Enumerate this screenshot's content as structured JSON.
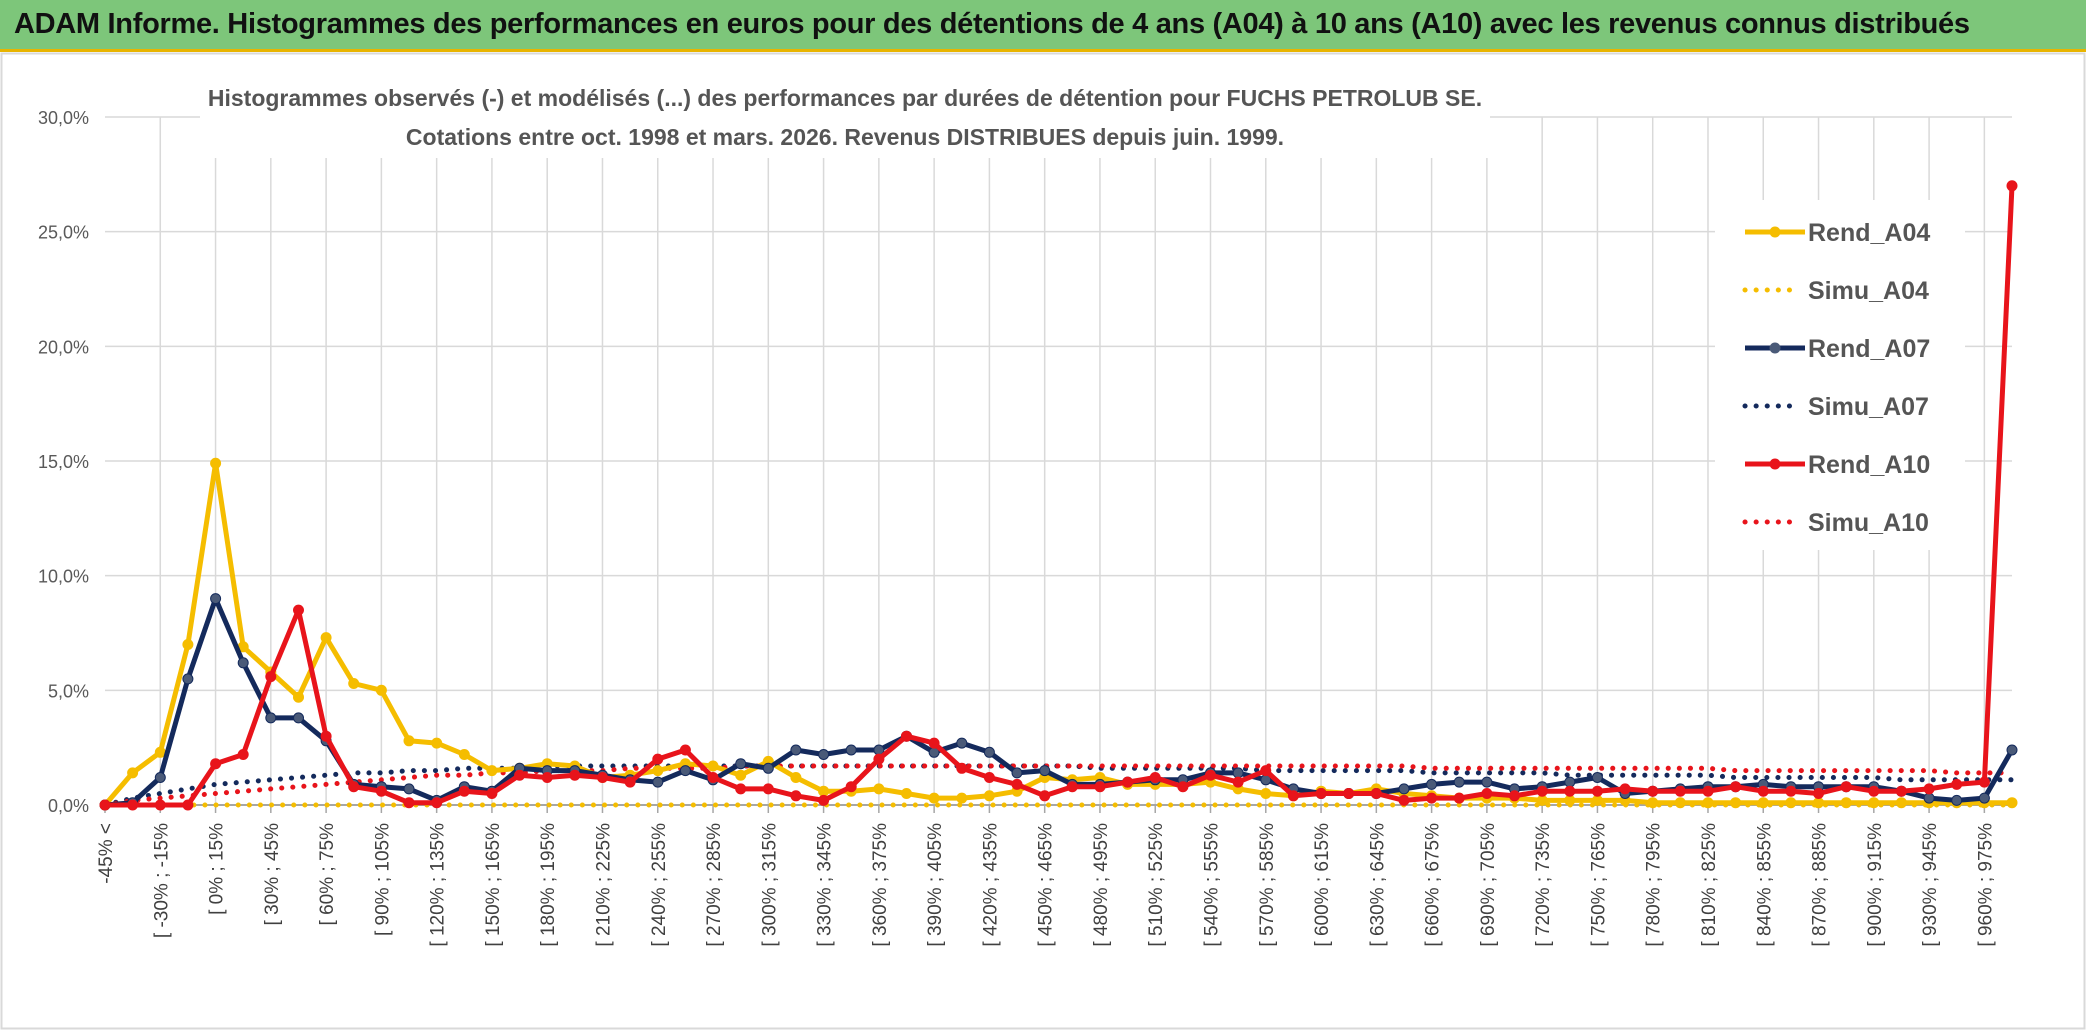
{
  "header": {
    "title": "ADAM Informe. Histogrammes des performances en euros pour des détentions de 4 ans (A04) à 10 ans (A10) avec les revenus connus distribués"
  },
  "chart_data": {
    "type": "line",
    "title": "Histogrammes observés (-) et modélisés (...) des performances par durées de détention pour FUCHS PETROLUB SE.",
    "subtitle": "Cotations entre oct. 1998 et mars. 2026. Revenus DISTRIBUES depuis juin. 1999.",
    "xlabel": "",
    "ylabel": "",
    "ylim": [
      0,
      30
    ],
    "yticks": [
      "0,0%",
      "5,0%",
      "10,0%",
      "15,0%",
      "20,0%",
      "25,0%",
      "30,0%"
    ],
    "grid": true,
    "legend_position": "right",
    "tick_labels": [
      "-45% <",
      "[ -30% ; -15%",
      "[ 0% ; 15%",
      "[ 30% ; 45%",
      "[ 60% ; 75%",
      "[ 90% ; 105%",
      "[ 120% ; 135%",
      "[ 150% ; 165%",
      "[ 180% ; 195%",
      "[ 210% ; 225%",
      "[ 240% ; 255%",
      "[ 270% ; 285%",
      "[ 300% ; 315%",
      "[ 330% ; 345%",
      "[ 360% ; 375%",
      "[ 390% ; 405%",
      "[ 420% ; 435%",
      "[ 450% ; 465%",
      "[ 480% ; 495%",
      "[ 510% ; 525%",
      "[ 540% ; 555%",
      "[ 570% ; 585%",
      "[ 600% ; 615%",
      "[ 630% ; 645%",
      "[ 660% ; 675%",
      "[ 690% ; 705%",
      "[ 720% ; 735%",
      "[ 750% ; 765%",
      "[ 780% ; 795%",
      "[ 810% ; 825%",
      "[ 840% ; 855%",
      "[ 870% ; 885%",
      "[ 900% ; 915%",
      "[ 930% ; 945%",
      "[ 960% ; 975%"
    ],
    "num_points": 70,
    "series": [
      {
        "name": "Rend_A04",
        "style": "solid",
        "color": "#f5bd00",
        "values": [
          0.0,
          1.4,
          2.3,
          7.0,
          14.9,
          6.9,
          5.8,
          4.7,
          7.3,
          5.3,
          5.0,
          2.8,
          2.7,
          2.2,
          1.5,
          1.6,
          1.8,
          1.7,
          1.2,
          1.3,
          1.5,
          1.8,
          1.7,
          1.3,
          1.9,
          1.2,
          0.6,
          0.6,
          0.7,
          0.5,
          0.3,
          0.3,
          0.4,
          0.6,
          1.2,
          1.1,
          1.2,
          0.9,
          0.9,
          0.9,
          1.0,
          0.7,
          0.5,
          0.4,
          0.6,
          0.5,
          0.7,
          0.5,
          0.4,
          0.3,
          0.3,
          0.3,
          0.2,
          0.2,
          0.2,
          0.2,
          0.1,
          0.1,
          0.1,
          0.1,
          0.1,
          0.1,
          0.1,
          0.1,
          0.1,
          0.1,
          0.1,
          0.1,
          0.1,
          0.1
        ]
      },
      {
        "name": "Simu_A04",
        "style": "dotted",
        "color": "#f5bd00",
        "values": [
          0.0,
          0.0,
          0.0,
          0.0,
          0.0,
          0.0,
          0.0,
          0.0,
          0.0,
          0.0,
          0.0,
          0.0,
          0.0,
          0.0,
          0.0,
          0.0,
          0.0,
          0.0,
          0.0,
          0.0,
          0.0,
          0.0,
          0.0,
          0.0,
          0.0,
          0.0,
          0.0,
          0.0,
          0.0,
          0.0,
          0.0,
          0.0,
          0.0,
          0.0,
          0.0,
          0.0,
          0.0,
          0.0,
          0.0,
          0.0,
          0.0,
          0.0,
          0.0,
          0.0,
          0.0,
          0.0,
          0.0,
          0.0,
          0.0,
          0.0,
          0.0,
          0.0,
          0.0,
          0.0,
          0.0,
          0.0,
          0.0,
          0.0,
          0.0,
          0.0,
          0.0,
          0.0,
          0.0,
          0.0,
          0.0,
          0.0,
          0.0,
          0.0,
          0.0,
          0.0
        ]
      },
      {
        "name": "Rend_A07",
        "style": "solid",
        "color": "#142a5c",
        "values": [
          0.0,
          0.1,
          1.2,
          5.5,
          9.0,
          6.2,
          3.8,
          3.8,
          2.8,
          0.9,
          0.8,
          0.7,
          0.2,
          0.8,
          0.6,
          1.6,
          1.5,
          1.5,
          1.3,
          1.1,
          1.0,
          1.5,
          1.1,
          1.8,
          1.6,
          2.4,
          2.2,
          2.4,
          2.4,
          3.0,
          2.3,
          2.7,
          2.3,
          1.4,
          1.5,
          0.9,
          0.9,
          1.0,
          1.1,
          1.1,
          1.4,
          1.4,
          1.1,
          0.7,
          0.5,
          0.5,
          0.5,
          0.7,
          0.9,
          1.0,
          1.0,
          0.7,
          0.8,
          1.0,
          1.2,
          0.5,
          0.6,
          0.7,
          0.8,
          0.8,
          0.9,
          0.8,
          0.8,
          0.8,
          0.8,
          0.6,
          0.3,
          0.2,
          0.3,
          2.4
        ]
      },
      {
        "name": "Simu_A07",
        "style": "dotted",
        "color": "#142a5c",
        "values": [
          0.0,
          0.3,
          0.5,
          0.7,
          0.9,
          1.0,
          1.1,
          1.2,
          1.3,
          1.4,
          1.4,
          1.5,
          1.5,
          1.6,
          1.6,
          1.6,
          1.7,
          1.7,
          1.7,
          1.7,
          1.7,
          1.7,
          1.7,
          1.7,
          1.7,
          1.7,
          1.7,
          1.7,
          1.7,
          1.7,
          1.7,
          1.7,
          1.7,
          1.7,
          1.7,
          1.7,
          1.6,
          1.6,
          1.6,
          1.6,
          1.6,
          1.6,
          1.5,
          1.5,
          1.5,
          1.5,
          1.5,
          1.5,
          1.4,
          1.4,
          1.4,
          1.4,
          1.4,
          1.3,
          1.3,
          1.3,
          1.3,
          1.3,
          1.3,
          1.2,
          1.2,
          1.2,
          1.2,
          1.2,
          1.2,
          1.1,
          1.1,
          1.1,
          1.1,
          1.1
        ]
      },
      {
        "name": "Rend_A10",
        "style": "solid",
        "color": "#e8141b",
        "values": [
          0.0,
          0.0,
          0.0,
          0.0,
          1.8,
          2.2,
          5.6,
          8.5,
          3.0,
          0.8,
          0.6,
          0.1,
          0.1,
          0.6,
          0.5,
          1.3,
          1.2,
          1.3,
          1.2,
          1.0,
          2.0,
          2.4,
          1.2,
          0.7,
          0.7,
          0.4,
          0.2,
          0.8,
          2.0,
          3.0,
          2.7,
          1.6,
          1.2,
          0.9,
          0.4,
          0.8,
          0.8,
          1.0,
          1.2,
          0.8,
          1.3,
          1.0,
          1.5,
          0.4,
          0.5,
          0.5,
          0.5,
          0.2,
          0.3,
          0.3,
          0.5,
          0.4,
          0.6,
          0.6,
          0.6,
          0.7,
          0.6,
          0.6,
          0.6,
          0.8,
          0.6,
          0.6,
          0.5,
          0.8,
          0.6,
          0.6,
          0.7,
          0.9,
          1.0,
          27.0
        ]
      },
      {
        "name": "Simu_A10",
        "style": "dotted",
        "color": "#e8141b",
        "values": [
          0.0,
          0.2,
          0.3,
          0.4,
          0.5,
          0.6,
          0.7,
          0.8,
          0.9,
          1.0,
          1.1,
          1.2,
          1.3,
          1.3,
          1.4,
          1.4,
          1.5,
          1.5,
          1.5,
          1.6,
          1.6,
          1.6,
          1.6,
          1.7,
          1.7,
          1.7,
          1.7,
          1.7,
          1.7,
          1.7,
          1.7,
          1.7,
          1.7,
          1.7,
          1.7,
          1.7,
          1.7,
          1.7,
          1.7,
          1.7,
          1.7,
          1.7,
          1.7,
          1.7,
          1.7,
          1.7,
          1.7,
          1.7,
          1.6,
          1.6,
          1.6,
          1.6,
          1.6,
          1.6,
          1.6,
          1.6,
          1.6,
          1.6,
          1.6,
          1.5,
          1.5,
          1.5,
          1.5,
          1.5,
          1.5,
          1.5,
          1.5,
          1.4,
          1.4,
          1.4
        ]
      }
    ]
  }
}
